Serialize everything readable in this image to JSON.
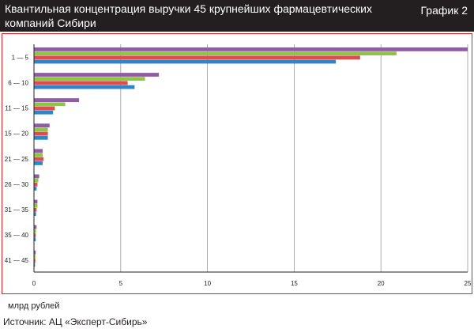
{
  "header": {
    "title": "Квантильная концентрация выручки 45 крупнейших фармацевтических компаний Сибири",
    "label": "График 2"
  },
  "footer": {
    "unit": "млрд рублей",
    "source": "Источник: АЦ «Эксперт-Сибирь»"
  },
  "colors": {
    "header_bg": "#231f20",
    "frame": "#d9252a",
    "series": [
      "#8e5ea2",
      "#8dc63f",
      "#e24b4b",
      "#2e86c8"
    ]
  },
  "chart_data": {
    "type": "bar",
    "orientation": "horizontal",
    "categories": [
      "1 — 5",
      "6 — 10",
      "11 — 15",
      "15 — 20",
      "21 — 25",
      "26 — 30",
      "31 — 35",
      "35 — 40",
      "41 — 45"
    ],
    "series": [
      {
        "values": [
          25.0,
          7.2,
          2.6,
          0.9,
          0.5,
          0.3,
          0.2,
          0.15,
          0.1
        ]
      },
      {
        "values": [
          20.9,
          6.4,
          1.8,
          0.8,
          0.5,
          0.25,
          0.2,
          0.12,
          0.08
        ]
      },
      {
        "values": [
          18.8,
          5.4,
          1.2,
          0.8,
          0.55,
          0.2,
          0.15,
          0.1,
          0.08
        ]
      },
      {
        "values": [
          17.4,
          5.8,
          1.1,
          0.8,
          0.5,
          0.15,
          0.12,
          0.1,
          0.06
        ]
      }
    ],
    "xticks": [
      0,
      5,
      10,
      15,
      20,
      25
    ],
    "xlim": [
      0,
      25
    ],
    "xlabel": "млрд рублей",
    "grid": true
  }
}
